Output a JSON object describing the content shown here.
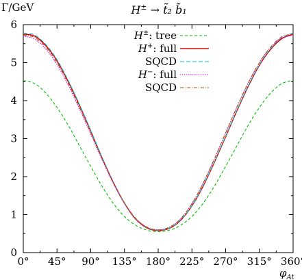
{
  "chart_data": {
    "type": "line",
    "title": "H^± → t̃₂ b̃₁",
    "ylabel": "Γ/GeV",
    "xlabel": "φ_At",
    "xlim": [
      0,
      360
    ],
    "ylim": [
      0,
      6
    ],
    "x_ticks": [
      "0°",
      "45°",
      "90°",
      "135°",
      "180°",
      "225°",
      "270°",
      "315°",
      "360°"
    ],
    "y_ticks": [
      "0",
      "1",
      "2",
      "3",
      "4",
      "5",
      "6"
    ],
    "grid": false,
    "legend_position": "top-center",
    "series": [
      {
        "name": "H±: tree",
        "legend_main": "H",
        "legend_sup": "±",
        "legend_rest": ": tree",
        "color": "#00c000",
        "dash": "4,3",
        "x": [
          0,
          15,
          30,
          45,
          60,
          75,
          90,
          105,
          120,
          135,
          150,
          165,
          180,
          195,
          210,
          225,
          240,
          255,
          270,
          285,
          300,
          315,
          330,
          345,
          360
        ],
        "y": [
          4.53,
          4.45,
          4.2,
          3.82,
          3.35,
          2.81,
          2.27,
          1.75,
          1.3,
          0.95,
          0.72,
          0.59,
          0.55,
          0.59,
          0.72,
          0.95,
          1.3,
          1.75,
          2.27,
          2.81,
          3.35,
          3.82,
          4.2,
          4.45,
          4.53
        ]
      },
      {
        "name": "H+: full",
        "legend_main": "H",
        "legend_sup": "+",
        "legend_rest": ":  full",
        "color": "#e00000",
        "dash": "",
        "x": [
          0,
          15,
          30,
          45,
          60,
          75,
          90,
          105,
          120,
          135,
          150,
          165,
          180,
          195,
          210,
          225,
          240,
          255,
          270,
          285,
          300,
          315,
          330,
          345,
          360
        ],
        "y": [
          5.75,
          5.7,
          5.45,
          5.05,
          4.5,
          3.88,
          3.2,
          2.5,
          1.85,
          1.3,
          0.88,
          0.65,
          0.58,
          0.64,
          0.85,
          1.23,
          1.75,
          2.38,
          3.05,
          3.73,
          4.37,
          4.93,
          5.35,
          5.63,
          5.75
        ]
      },
      {
        "name": "SQCD",
        "legend_main": "SQCD",
        "legend_sup": "",
        "legend_rest": "",
        "color": "#00c8e0",
        "dash": "6,3",
        "x": [
          0,
          15,
          30,
          45,
          60,
          75,
          90,
          105,
          120,
          135,
          150,
          165,
          180,
          195,
          210,
          225,
          240,
          255,
          270,
          285,
          300,
          315,
          330,
          345,
          360
        ],
        "y": [
          5.78,
          5.73,
          5.48,
          5.08,
          4.53,
          3.9,
          3.22,
          2.52,
          1.87,
          1.31,
          0.89,
          0.66,
          0.59,
          0.65,
          0.86,
          1.24,
          1.77,
          2.4,
          3.07,
          3.75,
          4.39,
          4.95,
          5.37,
          5.66,
          5.78
        ]
      },
      {
        "name": "H−: full",
        "legend_main": "H",
        "legend_sup": "−",
        "legend_rest": ":  full",
        "color": "#e000e0",
        "dash": "1.5,1.5",
        "x": [
          0,
          15,
          30,
          45,
          60,
          75,
          90,
          105,
          120,
          135,
          150,
          165,
          180,
          195,
          210,
          225,
          240,
          255,
          270,
          285,
          300,
          315,
          330,
          345,
          360
        ],
        "y": [
          5.7,
          5.62,
          5.36,
          4.95,
          4.41,
          3.78,
          3.12,
          2.45,
          1.83,
          1.3,
          0.9,
          0.67,
          0.6,
          0.67,
          0.89,
          1.29,
          1.83,
          2.47,
          3.15,
          3.83,
          4.46,
          5.0,
          5.4,
          5.65,
          5.72
        ]
      },
      {
        "name": "SQCD",
        "legend_main": "SQCD",
        "legend_sup": "",
        "legend_rest": "",
        "color": "#b05000",
        "dash": "5,2,1,2",
        "x": [
          0,
          15,
          30,
          45,
          60,
          75,
          90,
          105,
          120,
          135,
          150,
          165,
          180,
          195,
          210,
          225,
          240,
          255,
          270,
          285,
          300,
          315,
          330,
          345,
          360
        ],
        "y": [
          5.73,
          5.66,
          5.41,
          5.0,
          4.46,
          3.83,
          3.16,
          2.48,
          1.86,
          1.31,
          0.9,
          0.67,
          0.6,
          0.67,
          0.89,
          1.29,
          1.83,
          2.47,
          3.15,
          3.83,
          4.46,
          5.0,
          5.41,
          5.68,
          5.75
        ]
      }
    ]
  }
}
